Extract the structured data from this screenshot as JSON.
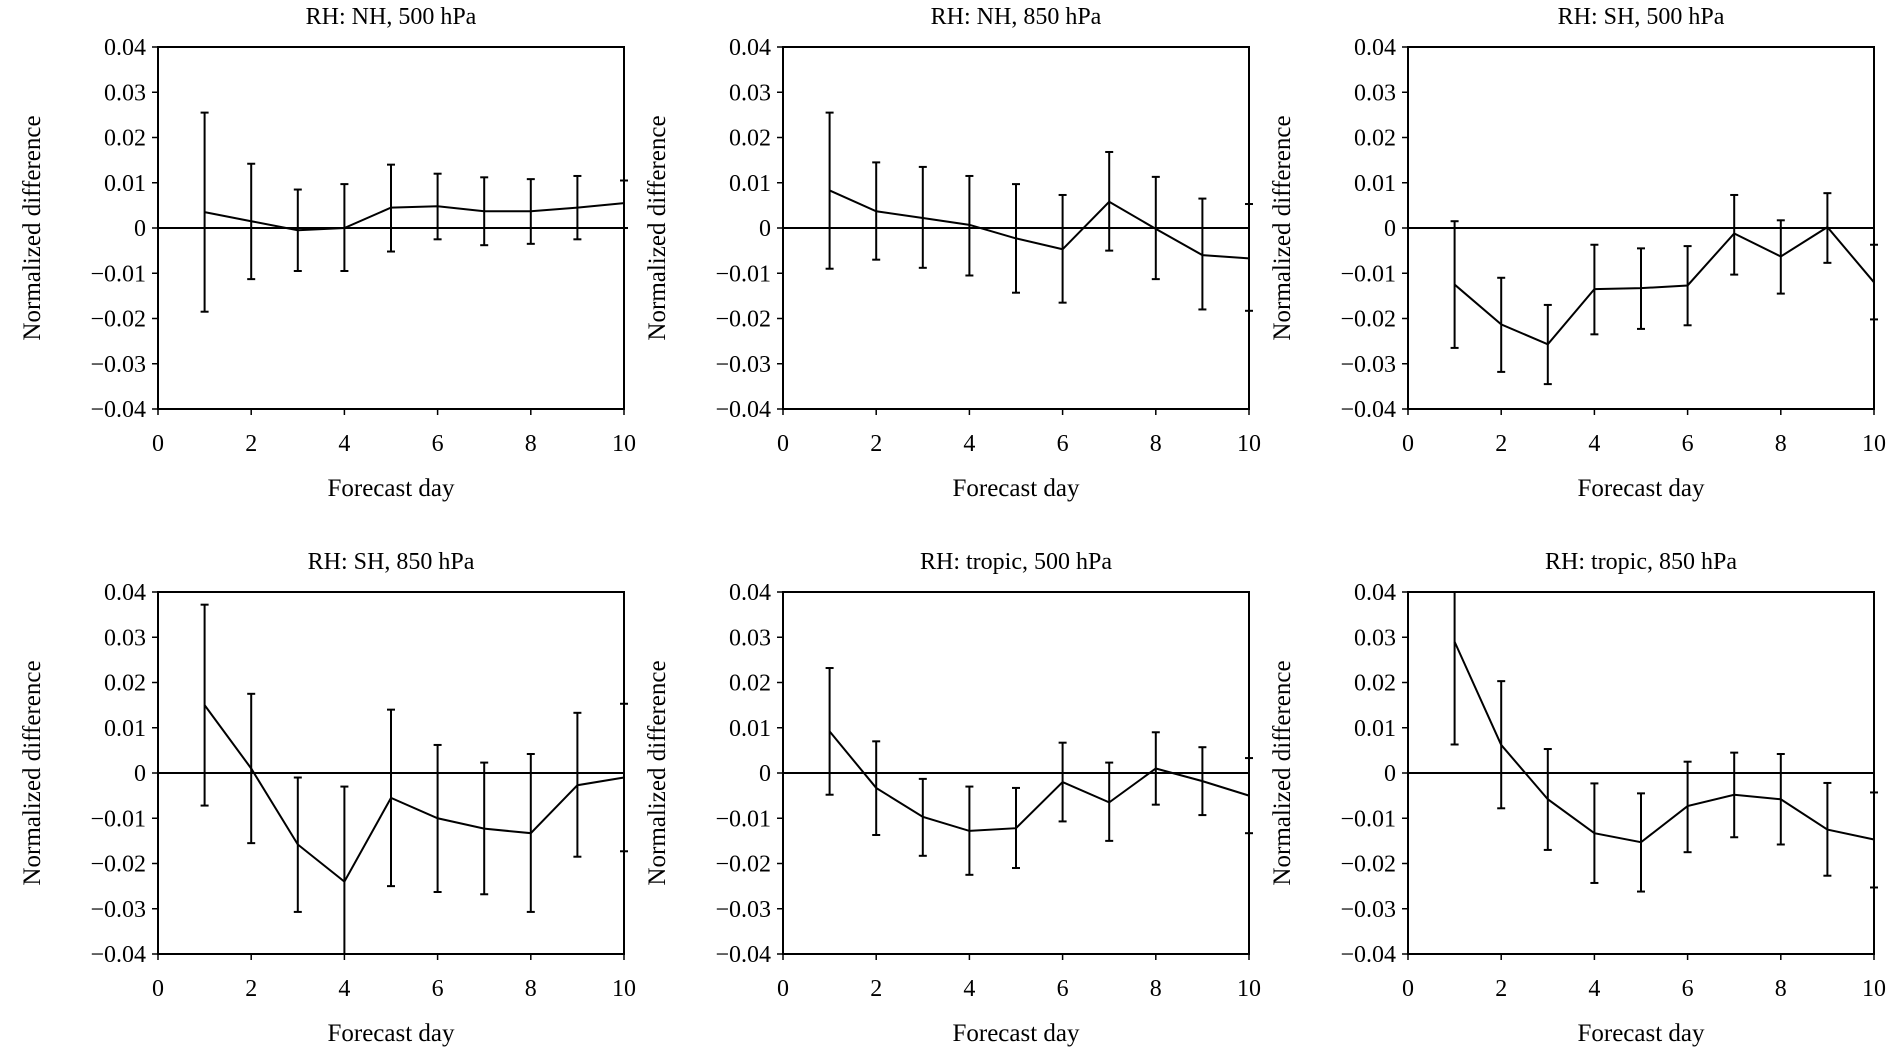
{
  "chart_data": [
    {
      "type": "line",
      "title": "RH: NH, 500 hPa",
      "xlabel": "Forecast day",
      "ylabel": "Normalized difference",
      "xlim": [
        0,
        10
      ],
      "ylim": [
        -0.04,
        0.04
      ],
      "x_ticks": [
        "0",
        "2",
        "4",
        "6",
        "8",
        "10"
      ],
      "y_ticks": [
        "0.04",
        "0.03",
        "0.02",
        "0.01",
        "0",
        "−0.01",
        "−0.02",
        "−0.03",
        "−0.04"
      ],
      "grid": false,
      "x": [
        1,
        2,
        3,
        4,
        5,
        6,
        7,
        8,
        9,
        10
      ],
      "values": [
        0.0035,
        0.0015,
        -0.0005,
        0.0,
        0.0045,
        0.0048,
        0.0037,
        0.0037,
        0.0045,
        0.0055
      ],
      "err_high": [
        0.0255,
        0.0142,
        0.0085,
        0.0097,
        0.014,
        0.012,
        0.0112,
        0.0108,
        0.0115,
        0.0105
      ],
      "err_low": [
        -0.0185,
        -0.0113,
        -0.0095,
        -0.0095,
        -0.0052,
        -0.0025,
        -0.0038,
        -0.0035,
        -0.0025,
        0.0
      ]
    },
    {
      "type": "line",
      "title": "RH: NH, 850 hPa",
      "xlabel": "Forecast day",
      "ylabel": "Normalized difference",
      "xlim": [
        0,
        10
      ],
      "ylim": [
        -0.04,
        0.04
      ],
      "x_ticks": [
        "0",
        "2",
        "4",
        "6",
        "8",
        "10"
      ],
      "y_ticks": [
        "0.04",
        "0.03",
        "0.02",
        "0.01",
        "0",
        "−0.01",
        "−0.02",
        "−0.03",
        "−0.04"
      ],
      "grid": false,
      "x": [
        1,
        2,
        3,
        4,
        5,
        6,
        7,
        8,
        9,
        10
      ],
      "values": [
        0.0083,
        0.0037,
        0.0022,
        0.0007,
        -0.0023,
        -0.0047,
        0.0058,
        -0.0002,
        -0.006,
        -0.0067
      ],
      "err_high": [
        0.0255,
        0.0145,
        0.0135,
        0.0115,
        0.0097,
        0.0073,
        0.0168,
        0.0113,
        0.0065,
        0.0053
      ],
      "err_low": [
        -0.009,
        -0.007,
        -0.0088,
        -0.0105,
        -0.0143,
        -0.0165,
        -0.005,
        -0.0113,
        -0.018,
        -0.0183
      ]
    },
    {
      "type": "line",
      "title": "RH: SH, 500 hPa",
      "xlabel": "Forecast day",
      "ylabel": "Normalized difference",
      "xlim": [
        0,
        10
      ],
      "ylim": [
        -0.04,
        0.04
      ],
      "x_ticks": [
        "0",
        "2",
        "4",
        "6",
        "8",
        "10"
      ],
      "y_ticks": [
        "0.04",
        "0.03",
        "0.02",
        "0.01",
        "0",
        "−0.01",
        "−0.02",
        "−0.03",
        "−0.04"
      ],
      "grid": false,
      "x": [
        1,
        2,
        3,
        4,
        5,
        6,
        7,
        8,
        9,
        10
      ],
      "values": [
        -0.0125,
        -0.0213,
        -0.0257,
        -0.0135,
        -0.0133,
        -0.0127,
        -0.0012,
        -0.0063,
        0.0002,
        -0.012
      ],
      "err_high": [
        0.0015,
        -0.011,
        -0.017,
        -0.0037,
        -0.0045,
        -0.004,
        0.0073,
        0.0017,
        0.0077,
        -0.0037
      ],
      "err_low": [
        -0.0265,
        -0.0318,
        -0.0345,
        -0.0235,
        -0.0223,
        -0.0215,
        -0.0103,
        -0.0145,
        -0.0077,
        -0.0202
      ]
    },
    {
      "type": "line",
      "title": "RH: SH, 850 hPa",
      "xlabel": "Forecast day",
      "ylabel": "Normalized difference",
      "xlim": [
        0,
        10
      ],
      "ylim": [
        -0.04,
        0.04
      ],
      "x_ticks": [
        "0",
        "2",
        "4",
        "6",
        "8",
        "10"
      ],
      "y_ticks": [
        "0.04",
        "0.03",
        "0.02",
        "0.01",
        "0",
        "−0.01",
        "−0.02",
        "−0.03",
        "−0.04"
      ],
      "grid": false,
      "x": [
        1,
        2,
        3,
        4,
        5,
        6,
        7,
        8,
        9,
        10
      ],
      "values": [
        0.015,
        0.001,
        -0.0158,
        -0.024,
        -0.0055,
        -0.01,
        -0.0123,
        -0.0133,
        -0.0027,
        -0.001
      ],
      "err_high": [
        0.0372,
        0.0175,
        -0.001,
        -0.003,
        0.014,
        0.0062,
        0.0023,
        0.0042,
        0.0133,
        0.0153
      ],
      "err_low": [
        -0.0072,
        -0.0155,
        -0.0307,
        -0.04,
        -0.025,
        -0.0263,
        -0.0268,
        -0.0307,
        -0.0185,
        -0.0173
      ]
    },
    {
      "type": "line",
      "title": "RH: tropic, 500 hPa",
      "xlabel": "Forecast day",
      "ylabel": "Normalized difference",
      "xlim": [
        0,
        10
      ],
      "ylim": [
        -0.04,
        0.04
      ],
      "x_ticks": [
        "0",
        "2",
        "4",
        "6",
        "8",
        "10"
      ],
      "y_ticks": [
        "0.04",
        "0.03",
        "0.02",
        "0.01",
        "0",
        "−0.01",
        "−0.02",
        "−0.03",
        "−0.04"
      ],
      "grid": false,
      "x": [
        1,
        2,
        3,
        4,
        5,
        6,
        7,
        8,
        9,
        10
      ],
      "values": [
        0.0092,
        -0.0033,
        -0.0097,
        -0.0128,
        -0.0122,
        -0.002,
        -0.0065,
        0.001,
        -0.0018,
        -0.005
      ],
      "err_high": [
        0.0232,
        0.007,
        -0.0013,
        -0.003,
        -0.0033,
        0.0067,
        0.0023,
        0.009,
        0.0057,
        0.0033
      ],
      "err_low": [
        -0.0048,
        -0.0137,
        -0.0183,
        -0.0225,
        -0.021,
        -0.0107,
        -0.015,
        -0.007,
        -0.0093,
        -0.0133
      ]
    },
    {
      "type": "line",
      "title": "RH: tropic, 850 hPa",
      "xlabel": "Forecast day",
      "ylabel": "Normalized difference",
      "xlim": [
        0,
        10
      ],
      "ylim": [
        -0.04,
        0.04
      ],
      "x_ticks": [
        "0",
        "2",
        "4",
        "6",
        "8",
        "10"
      ],
      "y_ticks": [
        "0.04",
        "0.03",
        "0.02",
        "0.01",
        "0",
        "−0.01",
        "−0.02",
        "−0.03",
        "−0.04"
      ],
      "grid": false,
      "x": [
        1,
        2,
        3,
        4,
        5,
        6,
        7,
        8,
        9,
        10
      ],
      "values": [
        0.029,
        0.0062,
        -0.0058,
        -0.0133,
        -0.0153,
        -0.0073,
        -0.0048,
        -0.0058,
        -0.0125,
        -0.0147
      ],
      "err_high": [
        0.04,
        0.0203,
        0.0053,
        -0.0023,
        -0.0045,
        0.0025,
        0.0045,
        0.0042,
        -0.0022,
        -0.0043
      ],
      "err_low": [
        0.0063,
        -0.0078,
        -0.017,
        -0.0243,
        -0.0262,
        -0.0175,
        -0.0142,
        -0.0158,
        -0.0227,
        -0.0253
      ]
    }
  ]
}
